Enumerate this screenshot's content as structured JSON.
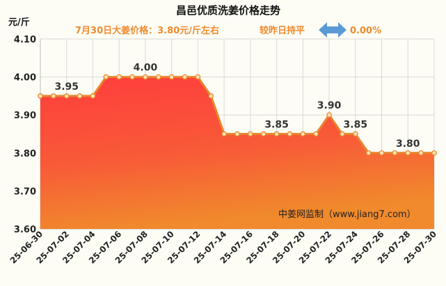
{
  "chart_data": {
    "type": "area",
    "title": "昌邑优质洗姜价格走势",
    "subtitle": {
      "price_text": "7月30日大姜价格：3.80元/斤左右",
      "compare_text": "较昨日持平",
      "change_text": "0.00%"
    },
    "ylabel": "元/斤",
    "ylim": [
      3.6,
      4.1
    ],
    "yticks": [
      "3.60",
      "3.70",
      "3.80",
      "3.90",
      "4.00",
      "4.10"
    ],
    "grid": true,
    "x": [
      "25-06-30",
      "25-07-01",
      "25-07-02",
      "25-07-03",
      "25-07-04",
      "25-07-05",
      "25-07-06",
      "25-07-07",
      "25-07-08",
      "25-07-09",
      "25-07-10",
      "25-07-11",
      "25-07-12",
      "25-07-13",
      "25-07-14",
      "25-07-15",
      "25-07-16",
      "25-07-17",
      "25-07-18",
      "25-07-19",
      "25-07-20",
      "25-07-21",
      "25-07-22",
      "25-07-23",
      "25-07-24",
      "25-07-25",
      "25-07-26",
      "25-07-27",
      "25-07-28",
      "25-07-29",
      "25-07-30"
    ],
    "xticks": [
      "25-06-30",
      "25-07-02",
      "25-07-04",
      "25-07-06",
      "25-07-08",
      "25-07-10",
      "25-07-12",
      "25-07-14",
      "25-07-16",
      "25-07-18",
      "25-07-20",
      "25-07-22",
      "25-07-24",
      "25-07-26",
      "25-07-28",
      "25-07-30"
    ],
    "series": [
      {
        "values": [
          3.95,
          3.95,
          3.95,
          3.95,
          3.95,
          4.0,
          4.0,
          4.0,
          4.0,
          4.0,
          4.0,
          4.0,
          4.0,
          3.95,
          3.85,
          3.85,
          3.85,
          3.85,
          3.85,
          3.85,
          3.85,
          3.85,
          3.9,
          3.85,
          3.85,
          3.8,
          3.8,
          3.8,
          3.8,
          3.8,
          3.8
        ]
      }
    ],
    "data_labels": [
      {
        "x": "25-07-02",
        "text": "3.95"
      },
      {
        "x": "25-07-08",
        "text": "4.00"
      },
      {
        "x": "25-07-18",
        "text": "3.85"
      },
      {
        "x": "25-07-22",
        "text": "3.90"
      },
      {
        "x": "25-07-24",
        "text": "3.85"
      },
      {
        "x": "25-07-28",
        "text": "3.80"
      }
    ],
    "watermark": "中姜网监制（www.jiang7.com）",
    "colors": {
      "line": "#e8862e",
      "marker_fill": "#fbe3b4",
      "fill_top": "#ff3d3d",
      "fill_bottom": "#f08a2c",
      "grid": "#d8d8d8",
      "subtitle_text": "#f08a2c",
      "arrow": "#5b9bd5"
    }
  }
}
